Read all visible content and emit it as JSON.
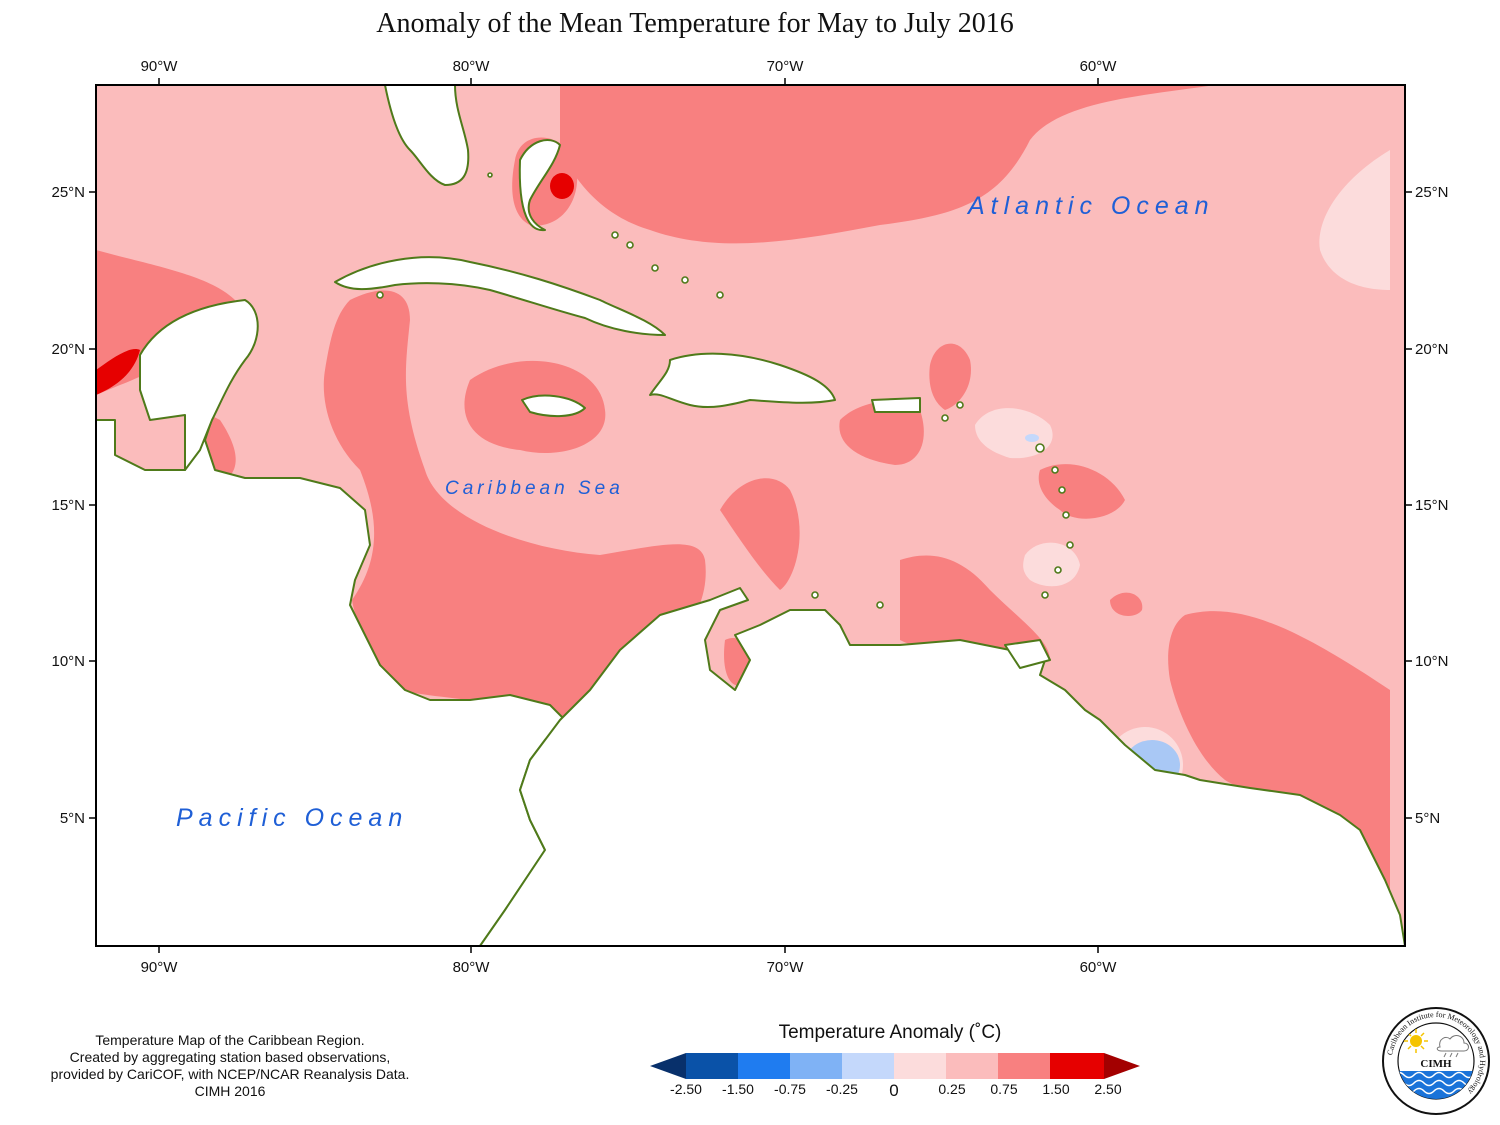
{
  "title": "Anomaly of the Mean Temperature for May to July 2016",
  "axes": {
    "longitude_ticks": [
      "90°W",
      "80°W",
      "70°W",
      "60°W"
    ],
    "latitude_ticks": [
      "25°N",
      "20°N",
      "15°N",
      "10°N",
      "5°N"
    ]
  },
  "regions": {
    "atlantic": "Atlantic Ocean",
    "caribbean": "Caribbean Sea",
    "pacific": "Pacific Ocean"
  },
  "legend": {
    "title": "Temperature Anomaly (˚C)",
    "labels": [
      "-2.50",
      "-1.50",
      "-0.75",
      "-0.25",
      "0",
      "0.25",
      "0.75",
      "1.50",
      "2.50"
    ],
    "colors": [
      "#08306b",
      "#0a52a8",
      "#1f7cf0",
      "#7fb2f5",
      "#c4d8fb",
      "#fcdcdc",
      "#fbbcbc",
      "#f88080",
      "#e60000",
      "#a30000"
    ]
  },
  "note": {
    "lines": [
      "Temperature Map of the Caribbean Region.",
      "Created by aggregating station based observations,",
      "provided by CariCOF, with NCEP/NCAR Reanalysis Data.",
      "CIMH 2016"
    ]
  },
  "logo": {
    "text": "CIMH",
    "ring_text": "Caribbean Institute for Meteorology and Hydrology",
    "icons": [
      "sun-icon",
      "cloud-rain-icon",
      "waves-icon"
    ]
  },
  "colors": {
    "land_outline": "#4f7a1a",
    "anomaly_light": "#fbbcbc",
    "anomaly_medium": "#f88080",
    "anomaly_high": "#e60000",
    "anomaly_faint": "#fcdcdc",
    "anomaly_negative": "#a9c8f5"
  }
}
